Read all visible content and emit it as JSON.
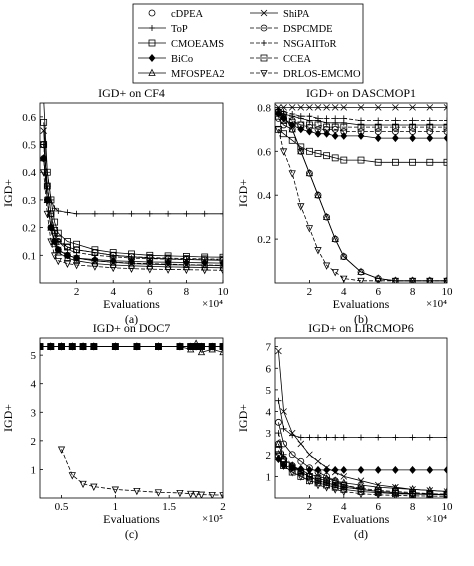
{
  "legend": {
    "entries": [
      {
        "name": "cDPEA",
        "marker": "circle"
      },
      {
        "name": "ShiPA",
        "marker": "x"
      },
      {
        "name": "ToP",
        "marker": "plus"
      },
      {
        "name": "DSPCMDE",
        "marker": "circle-dash"
      },
      {
        "name": "CMOEAMS",
        "marker": "square"
      },
      {
        "name": "NSGAIIToR",
        "marker": "plus-dash"
      },
      {
        "name": "BiCo",
        "marker": "diamond"
      },
      {
        "name": "CCEA",
        "marker": "square-dash"
      },
      {
        "name": "MFOSPEA2",
        "marker": "triangle-up"
      },
      {
        "name": "DRLOS-EMCMO",
        "marker": "triangle-down-dash"
      }
    ]
  },
  "chart_data": [
    {
      "type": "line",
      "panel_label": "(a)",
      "title": "IGD+ on CF4",
      "xlabel": "Evaluations",
      "ylabel": "IGD+",
      "x_multiplier": "×10⁴",
      "xlim": [
        0,
        10
      ],
      "ylim": [
        0,
        0.65
      ],
      "xticks": [
        2,
        4,
        6,
        8,
        10
      ],
      "yticks": [
        0.1,
        0.2,
        0.3,
        0.4,
        0.5,
        0.6
      ],
      "x": [
        0.2,
        0.4,
        0.6,
        0.8,
        1,
        1.5,
        2,
        3,
        4,
        5,
        6,
        7,
        8,
        9,
        10
      ],
      "series": [
        {
          "name": "cDPEA",
          "values": [
            0.5,
            0.35,
            0.25,
            0.18,
            0.15,
            0.13,
            0.12,
            0.11,
            0.1,
            0.095,
            0.09,
            0.087,
            0.085,
            0.083,
            0.082
          ]
        },
        {
          "name": "ShiPA",
          "values": [
            0.55,
            0.3,
            0.2,
            0.15,
            0.12,
            0.1,
            0.09,
            0.08,
            0.075,
            0.07,
            0.068,
            0.066,
            0.065,
            0.064,
            0.063
          ]
        },
        {
          "name": "ToP",
          "values": [
            0.66,
            0.4,
            0.3,
            0.27,
            0.26,
            0.255,
            0.25,
            0.25,
            0.25,
            0.25,
            0.25,
            0.25,
            0.25,
            0.25,
            0.25
          ]
        },
        {
          "name": "DSPCMDE",
          "values": [
            0.45,
            0.3,
            0.2,
            0.15,
            0.12,
            0.1,
            0.09,
            0.08,
            0.075,
            0.072,
            0.07,
            0.068,
            0.066,
            0.065,
            0.064
          ]
        },
        {
          "name": "CMOEAMS",
          "values": [
            0.58,
            0.4,
            0.3,
            0.22,
            0.18,
            0.15,
            0.14,
            0.12,
            0.11,
            0.105,
            0.1,
            0.098,
            0.096,
            0.094,
            0.093
          ]
        },
        {
          "name": "NSGAIIToR",
          "values": [
            0.5,
            0.35,
            0.25,
            0.18,
            0.15,
            0.12,
            0.11,
            0.1,
            0.095,
            0.09,
            0.088,
            0.086,
            0.085,
            0.084,
            0.083
          ]
        },
        {
          "name": "BiCo",
          "values": [
            0.45,
            0.3,
            0.2,
            0.15,
            0.12,
            0.1,
            0.09,
            0.085,
            0.08,
            0.078,
            0.076,
            0.075,
            0.074,
            0.073,
            0.072
          ]
        },
        {
          "name": "CCEA",
          "values": [
            0.5,
            0.35,
            0.25,
            0.19,
            0.16,
            0.13,
            0.12,
            0.11,
            0.1,
            0.095,
            0.092,
            0.09,
            0.088,
            0.087,
            0.086
          ]
        },
        {
          "name": "MFOSPEA2",
          "values": [
            0.45,
            0.3,
            0.2,
            0.14,
            0.11,
            0.09,
            0.08,
            0.07,
            0.065,
            0.062,
            0.06,
            0.058,
            0.057,
            0.056,
            0.055
          ]
        },
        {
          "name": "DRLOS-EMCMO",
          "values": [
            0.4,
            0.25,
            0.15,
            0.1,
            0.08,
            0.07,
            0.065,
            0.06,
            0.055,
            0.052,
            0.05,
            0.049,
            0.048,
            0.047,
            0.046
          ]
        }
      ]
    },
    {
      "type": "line",
      "panel_label": "(b)",
      "title": "IGD+ on DASCMOP1",
      "xlabel": "Evaluations",
      "ylabel": "IGD+",
      "x_multiplier": "×10⁴",
      "xlim": [
        0,
        10
      ],
      "ylim": [
        0,
        0.82
      ],
      "xticks": [
        2,
        4,
        6,
        8,
        10
      ],
      "yticks": [
        0.2,
        0.4,
        0.6,
        0.8
      ],
      "x": [
        0.2,
        0.5,
        1,
        1.5,
        2,
        2.5,
        3,
        3.5,
        4,
        5,
        6,
        7,
        8,
        9,
        10
      ],
      "series": [
        {
          "name": "cDPEA",
          "values": [
            0.75,
            0.72,
            0.7,
            0.6,
            0.5,
            0.4,
            0.3,
            0.2,
            0.12,
            0.05,
            0.02,
            0.01,
            0.01,
            0.01,
            0.01
          ]
        },
        {
          "name": "ShiPA",
          "values": [
            0.8,
            0.8,
            0.8,
            0.8,
            0.8,
            0.8,
            0.8,
            0.8,
            0.8,
            0.8,
            0.8,
            0.8,
            0.8,
            0.8,
            0.8
          ]
        },
        {
          "name": "ToP",
          "values": [
            0.78,
            0.77,
            0.76,
            0.75,
            0.74,
            0.74,
            0.73,
            0.73,
            0.73,
            0.72,
            0.72,
            0.72,
            0.72,
            0.72,
            0.72
          ]
        },
        {
          "name": "DSPCMDE",
          "values": [
            0.78,
            0.77,
            0.74,
            0.72,
            0.71,
            0.7,
            0.7,
            0.7,
            0.69,
            0.69,
            0.69,
            0.69,
            0.69,
            0.69,
            0.69
          ]
        },
        {
          "name": "CMOEAMS",
          "values": [
            0.7,
            0.68,
            0.65,
            0.62,
            0.6,
            0.59,
            0.58,
            0.57,
            0.56,
            0.56,
            0.55,
            0.55,
            0.55,
            0.55,
            0.55
          ]
        },
        {
          "name": "NSGAIIToR",
          "values": [
            0.79,
            0.78,
            0.77,
            0.76,
            0.76,
            0.75,
            0.75,
            0.75,
            0.75,
            0.74,
            0.74,
            0.74,
            0.74,
            0.74,
            0.74
          ]
        },
        {
          "name": "BiCo",
          "values": [
            0.77,
            0.75,
            0.72,
            0.7,
            0.69,
            0.68,
            0.68,
            0.67,
            0.67,
            0.67,
            0.66,
            0.66,
            0.66,
            0.66,
            0.66
          ]
        },
        {
          "name": "CCEA",
          "values": [
            0.76,
            0.74,
            0.73,
            0.72,
            0.72,
            0.72,
            0.71,
            0.71,
            0.71,
            0.71,
            0.71,
            0.71,
            0.71,
            0.71,
            0.71
          ]
        },
        {
          "name": "MFOSPEA2",
          "values": [
            0.78,
            0.76,
            0.7,
            0.6,
            0.5,
            0.4,
            0.3,
            0.2,
            0.12,
            0.05,
            0.02,
            0.01,
            0.01,
            0.01,
            0.01
          ]
        },
        {
          "name": "DRLOS-EMCMO",
          "values": [
            0.7,
            0.6,
            0.5,
            0.35,
            0.25,
            0.15,
            0.08,
            0.05,
            0.02,
            0.01,
            0.01,
            0.01,
            0.01,
            0.01,
            0.01
          ]
        }
      ]
    },
    {
      "type": "line",
      "panel_label": "(c)",
      "title": "IGD+ on DOC7",
      "xlabel": "Evaluations",
      "ylabel": "IGD+",
      "x_multiplier": "×10⁵",
      "xlim": [
        0.3,
        2.0
      ],
      "ylim": [
        0,
        5.6
      ],
      "xticks": [
        0.5,
        1.0,
        1.5,
        2.0
      ],
      "yticks": [
        1,
        2,
        3,
        4,
        5
      ],
      "x": [
        0.3,
        0.4,
        0.5,
        0.6,
        0.7,
        0.8,
        1.0,
        1.2,
        1.4,
        1.6,
        1.7,
        1.75,
        1.8,
        1.9,
        2.0
      ],
      "series": [
        {
          "name": "cDPEA",
          "values": [
            5.3,
            5.3,
            5.3,
            5.3,
            5.3,
            5.3,
            5.3,
            5.3,
            5.3,
            5.3,
            5.3,
            5.3,
            5.3,
            5.3,
            5.3
          ]
        },
        {
          "name": "ShiPA",
          "values": [
            5.3,
            5.3,
            5.3,
            5.3,
            5.3,
            5.3,
            5.3,
            5.3,
            5.3,
            5.3,
            5.3,
            5.3,
            5.3,
            5.3,
            5.3
          ]
        },
        {
          "name": "ToP",
          "values": [
            5.3,
            5.3,
            5.3,
            5.3,
            5.3,
            5.3,
            5.3,
            5.3,
            5.3,
            5.3,
            5.3,
            5.3,
            5.3,
            5.3,
            5.3
          ]
        },
        {
          "name": "DSPCMDE",
          "values": [
            5.3,
            5.3,
            5.3,
            5.3,
            5.3,
            5.3,
            5.3,
            5.3,
            5.3,
            5.3,
            5.3,
            5.3,
            5.3,
            5.3,
            5.3
          ]
        },
        {
          "name": "CMOEAMS",
          "values": [
            5.3,
            5.3,
            5.3,
            5.3,
            5.3,
            5.3,
            5.3,
            5.3,
            5.3,
            5.3,
            5.3,
            5.3,
            5.3,
            5.3,
            5.3
          ]
        },
        {
          "name": "NSGAIIToR",
          "values": [
            5.3,
            5.3,
            5.3,
            5.3,
            5.3,
            5.3,
            5.3,
            5.3,
            5.3,
            5.3,
            5.3,
            5.3,
            5.3,
            5.3,
            5.3
          ]
        },
        {
          "name": "BiCo",
          "values": [
            5.3,
            5.3,
            5.3,
            5.3,
            5.3,
            5.3,
            5.3,
            5.3,
            5.3,
            5.3,
            5.3,
            5.3,
            5.3,
            5.3,
            5.3
          ]
        },
        {
          "name": "CCEA",
          "values": [
            5.3,
            5.3,
            5.3,
            5.3,
            5.3,
            5.3,
            5.3,
            5.3,
            5.3,
            5.3,
            5.3,
            5.3,
            5.3,
            5.3,
            5.3
          ]
        },
        {
          "name": "MFOSPEA2",
          "values": [
            5.3,
            5.3,
            5.3,
            5.3,
            5.3,
            5.3,
            5.3,
            5.3,
            5.3,
            5.3,
            5.2,
            5.4,
            5.1,
            5.2,
            5.1
          ]
        },
        {
          "name": "DRLOS-EMCMO",
          "values": [
            null,
            null,
            1.7,
            0.8,
            0.5,
            0.4,
            0.3,
            0.25,
            0.2,
            0.18,
            0.15,
            0.14,
            0.12,
            0.11,
            0.1
          ]
        }
      ]
    },
    {
      "type": "line",
      "panel_label": "(d)",
      "title": "IGD+ on LIRCMOP6",
      "xlabel": "Evaluations",
      "ylabel": "IGD+",
      "x_multiplier": "×10⁴",
      "xlim": [
        0,
        10
      ],
      "ylim": [
        0,
        7.4
      ],
      "xticks": [
        2,
        4,
        6,
        8,
        10
      ],
      "yticks": [
        1,
        2,
        3,
        4,
        5,
        6,
        7
      ],
      "x": [
        0.2,
        0.5,
        1,
        1.5,
        2,
        2.5,
        3,
        3.5,
        4,
        5,
        6,
        7,
        8,
        9,
        10
      ],
      "series": [
        {
          "name": "cDPEA",
          "values": [
            3.5,
            2.5,
            2.0,
            1.7,
            1.4,
            1.2,
            1.0,
            0.8,
            0.6,
            0.4,
            0.3,
            0.25,
            0.2,
            0.18,
            0.16
          ]
        },
        {
          "name": "ShiPA",
          "values": [
            6.8,
            4.0,
            3.0,
            2.5,
            2.0,
            1.7,
            1.4,
            1.2,
            1.0,
            0.8,
            0.6,
            0.5,
            0.4,
            0.35,
            0.3
          ]
        },
        {
          "name": "ToP",
          "values": [
            4.5,
            3.2,
            2.9,
            2.8,
            2.8,
            2.8,
            2.8,
            2.8,
            2.8,
            2.8,
            2.8,
            2.8,
            2.8,
            2.8,
            2.8
          ]
        },
        {
          "name": "DSPCMDE",
          "values": [
            2.5,
            1.8,
            1.5,
            1.2,
            1.0,
            0.8,
            0.7,
            0.6,
            0.5,
            0.4,
            0.3,
            0.25,
            0.2,
            0.18,
            0.16
          ]
        },
        {
          "name": "CMOEAMS",
          "values": [
            2.0,
            1.5,
            1.2,
            1.0,
            0.8,
            0.7,
            0.6,
            0.5,
            0.4,
            0.3,
            0.25,
            0.2,
            0.18,
            0.16,
            0.15
          ]
        },
        {
          "name": "NSGAIIToR",
          "values": [
            3.0,
            2.0,
            1.5,
            1.2,
            1.0,
            0.8,
            0.7,
            0.6,
            0.5,
            0.4,
            0.3,
            0.25,
            0.2,
            0.18,
            0.16
          ]
        },
        {
          "name": "BiCo",
          "values": [
            1.8,
            1.5,
            1.4,
            1.35,
            1.3,
            1.3,
            1.3,
            1.3,
            1.3,
            1.3,
            1.3,
            1.3,
            1.3,
            1.3,
            1.3
          ]
        },
        {
          "name": "CCEA",
          "values": [
            2.2,
            1.7,
            1.4,
            1.2,
            1.0,
            0.9,
            0.8,
            0.7,
            0.6,
            0.45,
            0.35,
            0.3,
            0.25,
            0.2,
            0.18
          ]
        },
        {
          "name": "MFOSPEA2",
          "values": [
            2.5,
            1.8,
            1.5,
            1.3,
            1.1,
            1.0,
            0.9,
            0.8,
            0.7,
            0.6,
            0.5,
            0.45,
            0.4,
            0.35,
            0.3
          ]
        },
        {
          "name": "DRLOS-EMCMO",
          "values": [
            2.0,
            1.5,
            1.2,
            1.0,
            0.8,
            0.6,
            0.5,
            0.4,
            0.3,
            0.2,
            0.15,
            0.12,
            0.1,
            0.09,
            0.08
          ]
        }
      ]
    }
  ]
}
